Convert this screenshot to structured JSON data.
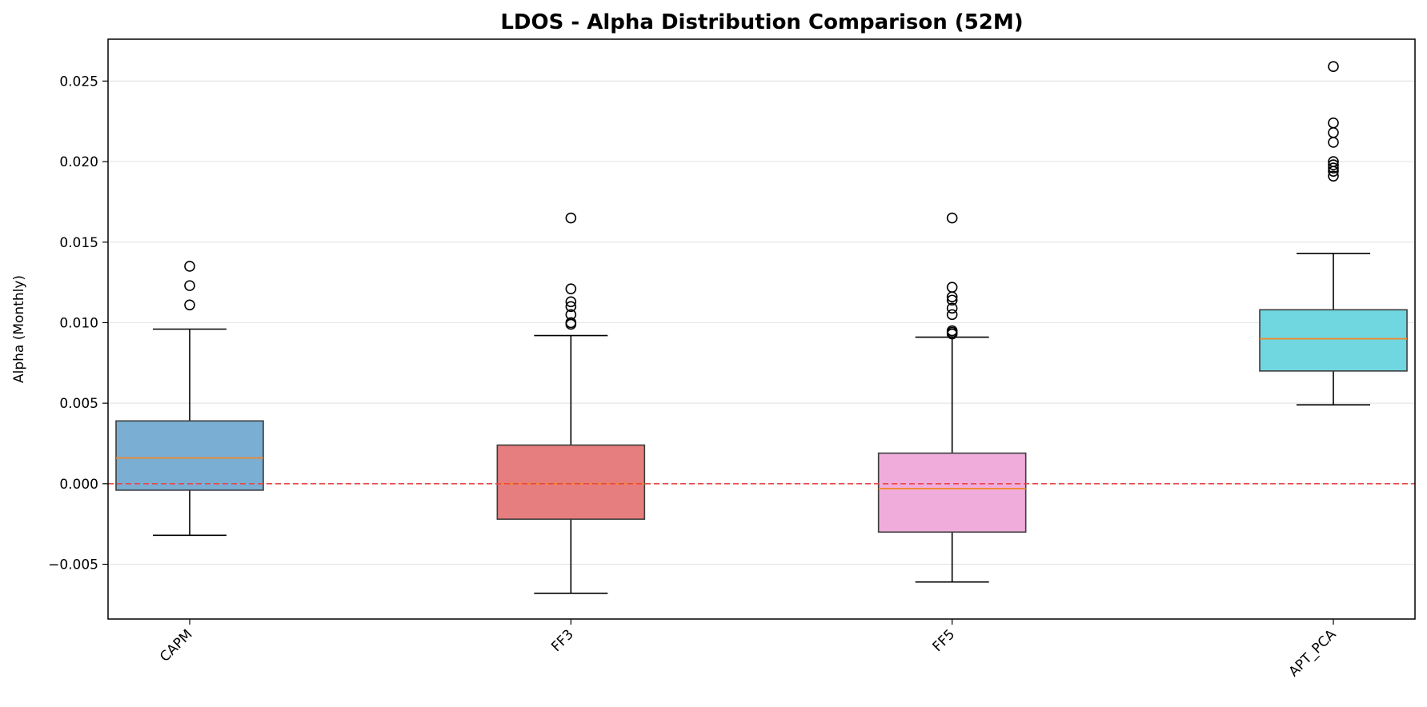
{
  "chart_data": {
    "type": "box",
    "title": "LDOS - Alpha Distribution Comparison (52M)",
    "xlabel": "",
    "ylabel": "Alpha (Monthly)",
    "ylim": [
      -0.0084,
      0.0276
    ],
    "yticks": [
      -0.005,
      0.0,
      0.005,
      0.01,
      0.015,
      0.02,
      0.025
    ],
    "ytick_labels": [
      "−0.005",
      "0.000",
      "0.005",
      "0.010",
      "0.015",
      "0.020",
      "0.025"
    ],
    "grid": "y",
    "reference_line": {
      "y": 0.0,
      "color": "#e8474b",
      "style": "dashed"
    },
    "median_color": "#f0882b",
    "categories": [
      "CAPM",
      "FF3",
      "FF5",
      "APT_PCA"
    ],
    "boxes": [
      {
        "name": "CAPM",
        "color": "#7aaed3",
        "whisker_low": -0.0032,
        "q1": -0.0004,
        "median": 0.0016,
        "q3": 0.0039,
        "whisker_high": 0.0096,
        "outliers": [
          0.0135,
          0.0123,
          0.0111
        ]
      },
      {
        "name": "FF3",
        "color": "#e67e7f",
        "whisker_low": -0.0068,
        "q1": -0.0022,
        "median": 0.0,
        "q3": 0.0024,
        "whisker_high": 0.0092,
        "outliers": [
          0.0165,
          0.0121,
          0.0113,
          0.011,
          0.0105,
          0.01,
          0.0099
        ]
      },
      {
        "name": "FF5",
        "color": "#f0addb",
        "whisker_low": -0.0061,
        "q1": -0.003,
        "median": -0.0003,
        "q3": 0.0019,
        "whisker_high": 0.0091,
        "outliers": [
          0.0165,
          0.0122,
          0.0116,
          0.0114,
          0.0109,
          0.0105,
          0.0095,
          0.0094,
          0.0093
        ]
      },
      {
        "name": "APT_PCA",
        "color": "#70d7e0",
        "whisker_low": 0.0049,
        "q1": 0.007,
        "median": 0.009,
        "q3": 0.0108,
        "whisker_high": 0.0143,
        "outliers": [
          0.0259,
          0.0224,
          0.0218,
          0.0212,
          0.02,
          0.0198,
          0.0196,
          0.0194,
          0.0191
        ]
      }
    ]
  }
}
